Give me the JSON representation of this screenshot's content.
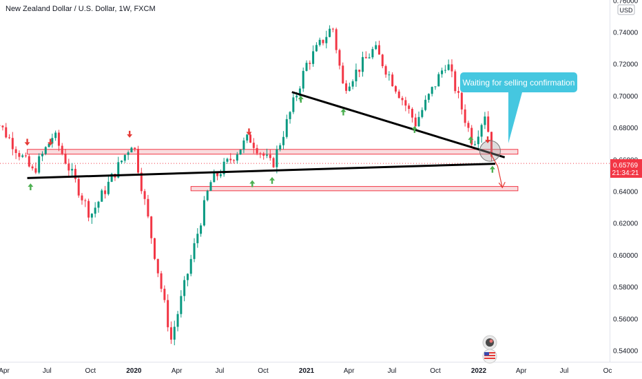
{
  "header": {
    "title": "New Zealand Dollar / U.S. Dollar, 1W, FXCM"
  },
  "price_scale": {
    "currency": "USD",
    "current_price": "0.65769",
    "countdown": "21:34:21"
  },
  "annotation": {
    "text": "Waiting for selling confirmation"
  },
  "colors": {
    "up": "#089981",
    "down": "#f23645",
    "trendline": "#000000",
    "zone_fill": "#f8d3d6",
    "zone_border": "#f23645",
    "callout": "#45c7e0",
    "signal_up": "#4caf50",
    "signal_down": "#e53935"
  },
  "chart_data": {
    "type": "candlestick",
    "title": "New Zealand Dollar / U.S. Dollar, 1W, FXCM",
    "y_ticks": [
      0.74,
      0.72,
      0.7,
      0.68,
      0.66,
      0.64,
      0.62,
      0.6,
      0.58,
      0.56,
      0.54
    ],
    "y_tick_labels": [
      "0.74000",
      "0.72000",
      "0.70000",
      "0.68000",
      "0.66000",
      "0.64000",
      "0.62000",
      "0.60000",
      "0.58000",
      "0.56000",
      "0.54000"
    ],
    "ylim": [
      0.5365,
      0.7625
    ],
    "x_labels": [
      {
        "label": "Apr",
        "bold": false,
        "date": "2019-04-01"
      },
      {
        "label": "Jul",
        "bold": false,
        "date": "2019-07-01"
      },
      {
        "label": "Oct",
        "bold": false,
        "date": "2019-10-01"
      },
      {
        "label": "2020",
        "bold": true,
        "date": "2020-01-01"
      },
      {
        "label": "Apr",
        "bold": false,
        "date": "2020-04-01"
      },
      {
        "label": "Jul",
        "bold": false,
        "date": "2020-07-01"
      },
      {
        "label": "Oct",
        "bold": false,
        "date": "2020-10-01"
      },
      {
        "label": "2021",
        "bold": true,
        "date": "2021-01-01"
      },
      {
        "label": "Apr",
        "bold": false,
        "date": "2021-04-01"
      },
      {
        "label": "Jul",
        "bold": false,
        "date": "2021-07-01"
      },
      {
        "label": "Oct",
        "bold": false,
        "date": "2021-10-01"
      },
      {
        "label": "2022",
        "bold": true,
        "date": "2022-01-01"
      },
      {
        "label": "Apr",
        "bold": false,
        "date": "2022-04-01"
      },
      {
        "label": "Jul",
        "bold": false,
        "date": "2022-07-01"
      },
      {
        "label": "Oc",
        "bold": false,
        "date": "2022-10-01"
      }
    ],
    "current_price": 0.65769,
    "key_points": [
      {
        "date": "2019-03-01",
        "price": 0.691
      },
      {
        "date": "2019-06-01",
        "price": 0.652
      },
      {
        "date": "2019-07-15",
        "price": 0.676
      },
      {
        "date": "2019-10-01",
        "price": 0.625
      },
      {
        "date": "2019-12-30",
        "price": 0.672
      },
      {
        "date": "2020-03-20",
        "price": 0.547
      },
      {
        "date": "2020-06-10",
        "price": 0.645
      },
      {
        "date": "2020-09-01",
        "price": 0.674
      },
      {
        "date": "2020-10-20",
        "price": 0.656
      },
      {
        "date": "2021-01-01",
        "price": 0.72
      },
      {
        "date": "2021-02-25",
        "price": 0.744
      },
      {
        "date": "2021-03-20",
        "price": 0.705
      },
      {
        "date": "2021-05-25",
        "price": 0.73
      },
      {
        "date": "2021-08-20",
        "price": 0.683
      },
      {
        "date": "2021-10-25",
        "price": 0.722
      },
      {
        "date": "2021-12-20",
        "price": 0.67
      },
      {
        "date": "2022-01-15",
        "price": 0.69
      },
      {
        "date": "2022-02-01",
        "price": 0.657
      }
    ],
    "resistance_zone": {
      "from": 0.6635,
      "to": 0.6665,
      "start_date": "2019-05-20",
      "end_date": "2022-03-25"
    },
    "support_zone": {
      "from": 0.6405,
      "to": 0.6432,
      "start_date": "2020-05-01",
      "end_date": "2022-03-25"
    },
    "trendlines": [
      {
        "from": {
          "date": "2019-05-20",
          "price": 0.6485
        },
        "to": {
          "date": "2022-02-05",
          "price": 0.6575
        }
      },
      {
        "from": {
          "date": "2020-12-01",
          "price": 0.7025
        },
        "to": {
          "date": "2022-02-25",
          "price": 0.6615
        }
      }
    ],
    "projection": [
      {
        "date": "2022-01-25",
        "price": 0.6645
      },
      {
        "date": "2022-02-10",
        "price": 0.656
      },
      {
        "date": "2022-02-20",
        "price": 0.6425
      }
    ],
    "signal_arrows": [
      {
        "dir": "down",
        "date": "2019-05-20",
        "price": 0.671
      },
      {
        "dir": "up",
        "date": "2019-05-27",
        "price": 0.643
      },
      {
        "dir": "down",
        "date": "2019-07-08",
        "price": 0.671
      },
      {
        "dir": "down",
        "date": "2019-12-23",
        "price": 0.676
      },
      {
        "dir": "down",
        "date": "2020-09-01",
        "price": 0.6775
      },
      {
        "dir": "up",
        "date": "2020-09-08",
        "price": 0.645
      },
      {
        "dir": "up",
        "date": "2020-10-20",
        "price": 0.647
      },
      {
        "dir": "up",
        "date": "2020-12-20",
        "price": 0.698
      },
      {
        "dir": "up",
        "date": "2021-03-20",
        "price": 0.69
      },
      {
        "dir": "up",
        "date": "2021-08-18",
        "price": 0.679
      },
      {
        "dir": "up",
        "date": "2021-12-15",
        "price": 0.6725
      },
      {
        "dir": "down",
        "date": "2022-01-20",
        "price": 0.6725
      },
      {
        "dir": "up",
        "date": "2022-01-30",
        "price": 0.654
      }
    ]
  }
}
